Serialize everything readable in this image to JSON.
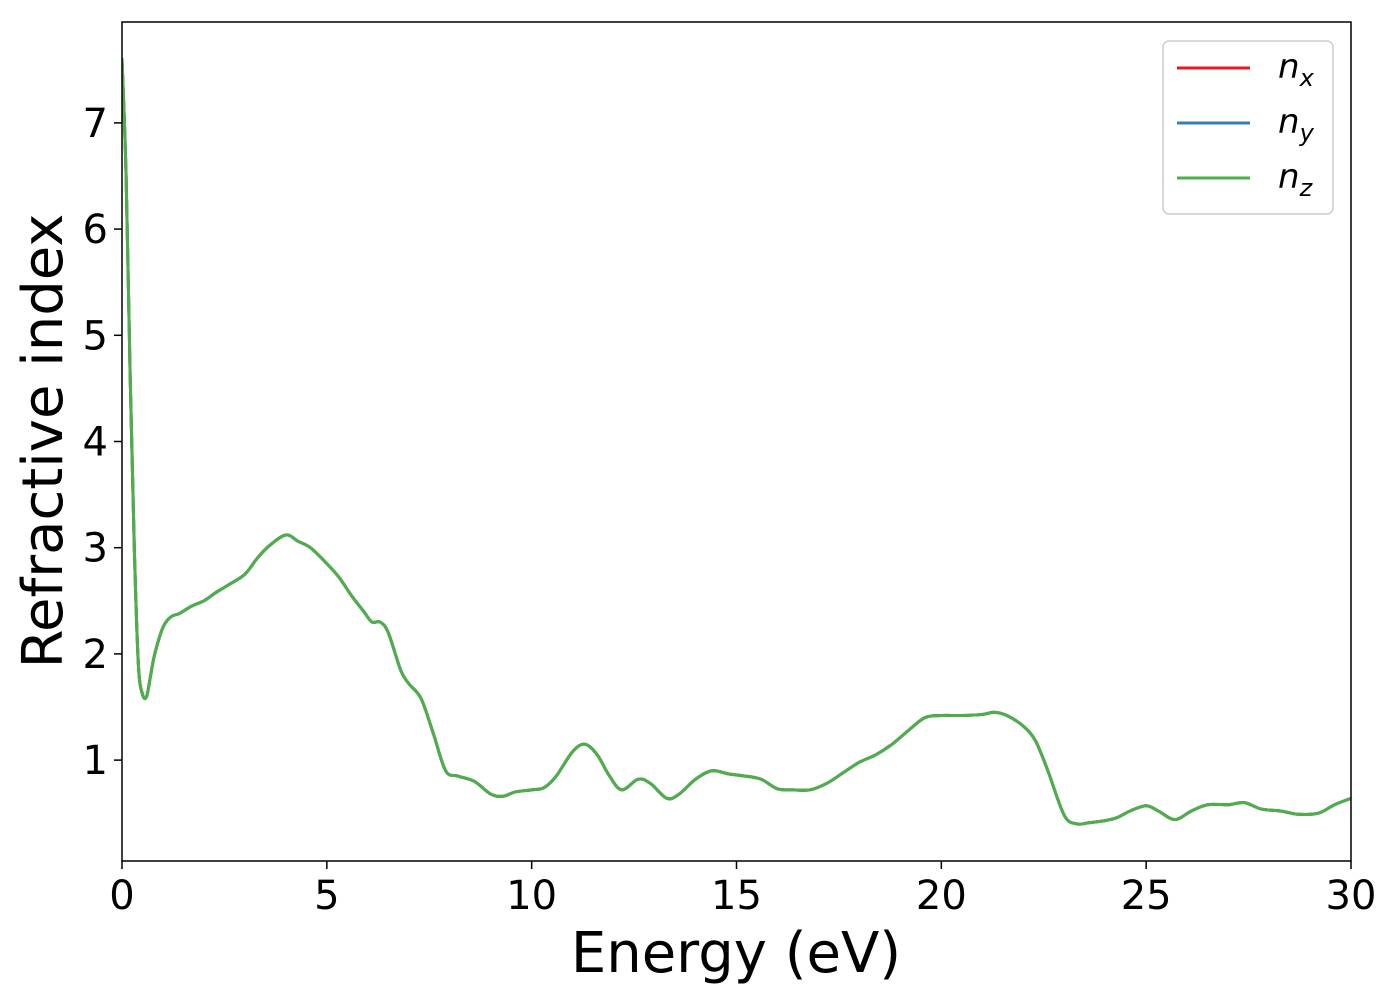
{
  "chart_data": {
    "type": "line",
    "xlabel": "Energy (eV)",
    "ylabel": "Refractive index",
    "xlim": [
      0,
      30
    ],
    "ylim": [
      0.05,
      7.95
    ],
    "xticks": [
      0,
      5,
      10,
      15,
      20,
      25,
      30
    ],
    "yticks": [
      1,
      2,
      3,
      4,
      5,
      6,
      7
    ],
    "grid": false,
    "legend_position": "top-right",
    "series": [
      {
        "name": "n_x",
        "label_main": "n",
        "label_sub": "x",
        "color": "#e41a1c"
      },
      {
        "name": "n_y",
        "label_main": "n",
        "label_sub": "y",
        "color": "#377eb8"
      },
      {
        "name": "n_z",
        "label_main": "n",
        "label_sub": "z",
        "color": "#4daf4a"
      }
    ],
    "x": [
      0.0,
      0.1,
      0.2,
      0.3,
      0.4,
      0.5,
      0.6,
      0.7,
      0.8,
      1.0,
      1.2,
      1.4,
      1.7,
      2.0,
      2.3,
      2.6,
      3.0,
      3.3,
      3.6,
      4.0,
      4.3,
      4.6,
      5.0,
      5.3,
      5.6,
      5.9,
      6.1,
      6.3,
      6.5,
      6.8,
      7.0,
      7.3,
      7.6,
      7.9,
      8.2,
      8.6,
      9.0,
      9.3,
      9.6,
      10.0,
      10.3,
      10.6,
      11.0,
      11.3,
      11.6,
      11.9,
      12.2,
      12.6,
      12.9,
      13.3,
      13.6,
      14.0,
      14.4,
      14.8,
      15.2,
      15.6,
      16.0,
      16.4,
      16.8,
      17.2,
      17.6,
      18.0,
      18.4,
      18.8,
      19.2,
      19.6,
      20.0,
      20.5,
      21.0,
      21.3,
      21.6,
      22.0,
      22.3,
      22.6,
      23.0,
      23.3,
      23.6,
      24.0,
      24.3,
      24.6,
      25.0,
      25.3,
      25.7,
      26.1,
      26.5,
      27.0,
      27.4,
      27.8,
      28.3,
      28.7,
      29.2,
      29.6,
      30.0
    ],
    "values": [
      7.6,
      6.5,
      4.6,
      3.0,
      1.9,
      1.62,
      1.6,
      1.8,
      2.0,
      2.25,
      2.35,
      2.38,
      2.45,
      2.5,
      2.58,
      2.65,
      2.75,
      2.9,
      3.02,
      3.12,
      3.06,
      3.0,
      2.85,
      2.72,
      2.55,
      2.4,
      2.3,
      2.3,
      2.2,
      1.85,
      1.72,
      1.58,
      1.25,
      0.9,
      0.85,
      0.8,
      0.68,
      0.66,
      0.7,
      0.72,
      0.74,
      0.85,
      1.08,
      1.15,
      1.05,
      0.85,
      0.72,
      0.82,
      0.78,
      0.64,
      0.68,
      0.82,
      0.9,
      0.87,
      0.85,
      0.82,
      0.73,
      0.72,
      0.72,
      0.78,
      0.88,
      0.98,
      1.05,
      1.15,
      1.28,
      1.4,
      1.42,
      1.42,
      1.43,
      1.45,
      1.42,
      1.32,
      1.18,
      0.9,
      0.48,
      0.4,
      0.41,
      0.43,
      0.46,
      0.52,
      0.57,
      0.52,
      0.44,
      0.52,
      0.58,
      0.58,
      0.6,
      0.54,
      0.52,
      0.49,
      0.5,
      0.58,
      0.64
    ]
  }
}
